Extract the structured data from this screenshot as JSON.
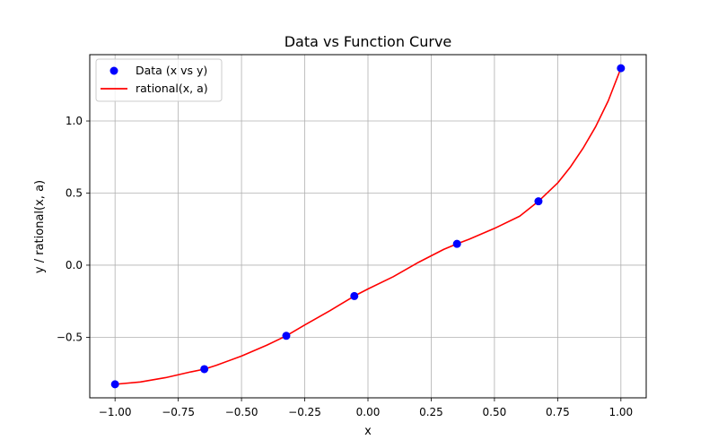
{
  "chart_data": {
    "type": "scatter",
    "title": "Data vs Function Curve",
    "xlabel": "x",
    "ylabel": "y / rational(x, a)",
    "xlim": [
      -1.1,
      1.1
    ],
    "ylim": [
      -0.92,
      1.46
    ],
    "grid": true,
    "legend_position": "top-left",
    "x_ticks": [
      -1.0,
      -0.75,
      -0.5,
      -0.25,
      0.0,
      0.25,
      0.5,
      0.75,
      1.0
    ],
    "x_tick_labels": [
      "−1.00",
      "−0.75",
      "−0.50",
      "−0.25",
      "0.00",
      "0.25",
      "0.50",
      "0.75",
      "1.00"
    ],
    "y_ticks": [
      -0.5,
      0.0,
      0.5,
      1.0
    ],
    "y_tick_labels": [
      "−0.5",
      "0.0",
      "0.5",
      "1.0"
    ],
    "series": [
      {
        "name": "Data (x vs y)",
        "kind": "scatter",
        "color": "#0000ff",
        "x": [
          -1.0,
          -0.647,
          -0.323,
          -0.054,
          0.352,
          0.674,
          1.0
        ],
        "y": [
          -0.826,
          -0.721,
          -0.49,
          -0.214,
          0.148,
          0.443,
          1.366
        ]
      },
      {
        "name": "rational(x, a)",
        "kind": "line",
        "color": "#ff0000",
        "x": [
          -1.0,
          -0.9,
          -0.8,
          -0.7,
          -0.647,
          -0.6,
          -0.5,
          -0.4,
          -0.323,
          -0.25,
          -0.15,
          -0.054,
          0.0,
          0.1,
          0.2,
          0.3,
          0.352,
          0.4,
          0.5,
          0.6,
          0.674,
          0.75,
          0.8,
          0.85,
          0.9,
          0.95,
          1.0
        ],
        "y": [
          -0.826,
          -0.81,
          -0.78,
          -0.74,
          -0.721,
          -0.695,
          -0.63,
          -0.555,
          -0.49,
          -0.415,
          -0.315,
          -0.214,
          -0.165,
          -0.08,
          0.02,
          0.11,
          0.148,
          0.18,
          0.255,
          0.34,
          0.443,
          0.57,
          0.68,
          0.81,
          0.96,
          1.14,
          1.366
        ]
      }
    ]
  }
}
